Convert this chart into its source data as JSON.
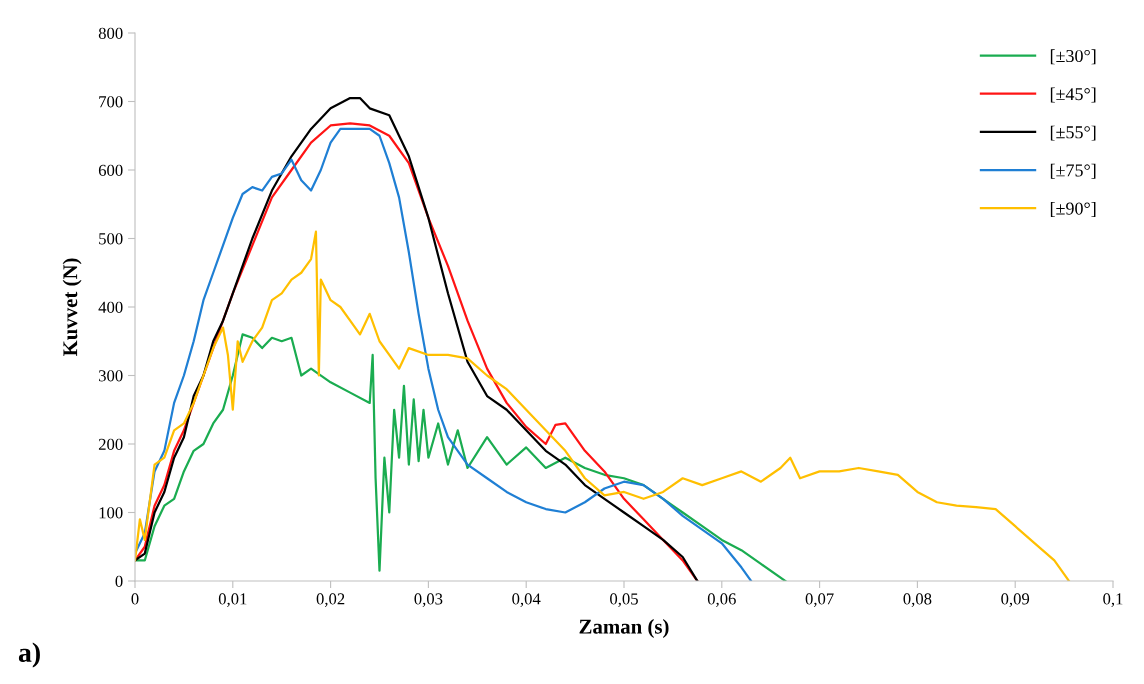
{
  "chart_data": {
    "type": "line",
    "xlabel": "Zaman (s)",
    "ylabel": "Kuvvet (N)",
    "annotations": [
      "a)"
    ],
    "xlim": [
      0,
      0.1
    ],
    "ylim": [
      0,
      800
    ],
    "xticks": [
      0,
      {
        "value": 0.01,
        "label": "0,01"
      },
      {
        "value": 0.02,
        "label": "0,02"
      },
      {
        "value": 0.03,
        "label": "0,03"
      },
      {
        "value": 0.04,
        "label": "0,04"
      },
      {
        "value": 0.05,
        "label": "0,05"
      },
      {
        "value": 0.06,
        "label": "0,06"
      },
      {
        "value": 0.07,
        "label": "0,07"
      },
      {
        "value": 0.08,
        "label": "0,08"
      },
      {
        "value": 0.09,
        "label": "0,09"
      },
      {
        "value": 0.1,
        "label": "0,1"
      }
    ],
    "yticks": [
      0,
      100,
      200,
      300,
      400,
      500,
      600,
      700,
      800
    ],
    "grid": false,
    "legend": "top right",
    "marker": "none",
    "line_style": "solid",
    "series": [
      {
        "name": "[±30°]",
        "color": "#1aac50",
        "x": [
          0,
          0.001,
          0.002,
          0.003,
          0.004,
          0.005,
          0.006,
          0.007,
          0.008,
          0.009,
          0.01,
          0.011,
          0.012,
          0.013,
          0.014,
          0.015,
          0.016,
          0.017,
          0.018,
          0.02,
          0.022,
          0.024,
          0.0243,
          0.0246,
          0.025,
          0.0255,
          0.026,
          0.0265,
          0.027,
          0.0275,
          0.028,
          0.0285,
          0.029,
          0.0295,
          0.03,
          0.031,
          0.032,
          0.033,
          0.034,
          0.036,
          0.038,
          0.04,
          0.042,
          0.044,
          0.046,
          0.048,
          0.05,
          0.052,
          0.054,
          0.056,
          0.058,
          0.06,
          0.062,
          0.064,
          0.0665
        ],
        "values": [
          30,
          30,
          80,
          110,
          120,
          160,
          190,
          200,
          230,
          250,
          300,
          360,
          355,
          340,
          355,
          350,
          355,
          300,
          310,
          290,
          275,
          260,
          330,
          150,
          15,
          180,
          100,
          250,
          180,
          285,
          170,
          265,
          175,
          250,
          180,
          230,
          170,
          220,
          165,
          210,
          170,
          195,
          165,
          180,
          165,
          155,
          150,
          140,
          120,
          100,
          80,
          60,
          45,
          25,
          0
        ]
      },
      {
        "name": "[±45°]",
        "color": "#ff1414",
        "x": [
          0,
          0.001,
          0.002,
          0.003,
          0.004,
          0.005,
          0.006,
          0.007,
          0.008,
          0.009,
          0.01,
          0.012,
          0.014,
          0.016,
          0.018,
          0.02,
          0.022,
          0.024,
          0.026,
          0.028,
          0.03,
          0.032,
          0.034,
          0.036,
          0.038,
          0.04,
          0.042,
          0.043,
          0.044,
          0.046,
          0.048,
          0.05,
          0.052,
          0.054,
          0.056,
          0.0575
        ],
        "values": [
          30,
          50,
          110,
          140,
          190,
          220,
          260,
          300,
          340,
          380,
          420,
          490,
          560,
          600,
          640,
          665,
          668,
          665,
          650,
          610,
          530,
          460,
          380,
          310,
          260,
          225,
          200,
          228,
          230,
          190,
          160,
          120,
          90,
          60,
          30,
          0
        ]
      },
      {
        "name": "[±55°]",
        "color": "#000000",
        "x": [
          0,
          0.001,
          0.002,
          0.003,
          0.004,
          0.005,
          0.006,
          0.007,
          0.008,
          0.009,
          0.01,
          0.012,
          0.014,
          0.016,
          0.018,
          0.02,
          0.022,
          0.023,
          0.024,
          0.026,
          0.028,
          0.03,
          0.032,
          0.034,
          0.036,
          0.038,
          0.04,
          0.042,
          0.044,
          0.046,
          0.048,
          0.05,
          0.052,
          0.054,
          0.056,
          0.0575
        ],
        "values": [
          30,
          40,
          100,
          130,
          180,
          210,
          270,
          300,
          350,
          380,
          420,
          500,
          570,
          620,
          660,
          690,
          705,
          705,
          690,
          680,
          620,
          530,
          420,
          320,
          270,
          250,
          220,
          190,
          170,
          140,
          120,
          100,
          80,
          60,
          35,
          0
        ]
      },
      {
        "name": "[±75°]",
        "color": "#1f7fd4",
        "x": [
          0,
          0.001,
          0.002,
          0.003,
          0.004,
          0.005,
          0.006,
          0.007,
          0.008,
          0.009,
          0.01,
          0.011,
          0.012,
          0.013,
          0.014,
          0.015,
          0.016,
          0.017,
          0.018,
          0.019,
          0.02,
          0.021,
          0.022,
          0.024,
          0.025,
          0.026,
          0.027,
          0.028,
          0.029,
          0.03,
          0.031,
          0.032,
          0.034,
          0.036,
          0.038,
          0.04,
          0.042,
          0.044,
          0.046,
          0.048,
          0.05,
          0.052,
          0.054,
          0.056,
          0.058,
          0.06,
          0.062,
          0.063
        ],
        "values": [
          40,
          70,
          160,
          190,
          260,
          300,
          350,
          410,
          450,
          490,
          530,
          565,
          575,
          570,
          590,
          595,
          615,
          585,
          570,
          600,
          640,
          660,
          660,
          660,
          650,
          610,
          560,
          480,
          390,
          310,
          250,
          210,
          170,
          150,
          130,
          115,
          105,
          100,
          115,
          135,
          145,
          140,
          120,
          95,
          75,
          55,
          20,
          0
        ]
      },
      {
        "name": "[±90°]",
        "color": "#ffbf00",
        "x": [
          0,
          0.0005,
          0.001,
          0.002,
          0.003,
          0.004,
          0.005,
          0.006,
          0.007,
          0.008,
          0.009,
          0.0095,
          0.01,
          0.0105,
          0.011,
          0.012,
          0.013,
          0.014,
          0.015,
          0.016,
          0.017,
          0.018,
          0.0185,
          0.0188,
          0.019,
          0.02,
          0.021,
          0.022,
          0.023,
          0.024,
          0.025,
          0.026,
          0.027,
          0.028,
          0.03,
          0.032,
          0.034,
          0.036,
          0.038,
          0.04,
          0.042,
          0.044,
          0.046,
          0.048,
          0.05,
          0.052,
          0.054,
          0.056,
          0.058,
          0.06,
          0.062,
          0.064,
          0.066,
          0.067,
          0.068,
          0.07,
          0.072,
          0.074,
          0.076,
          0.078,
          0.08,
          0.082,
          0.084,
          0.086,
          0.088,
          0.09,
          0.092,
          0.094,
          0.0955
        ],
        "values": [
          30,
          90,
          60,
          170,
          180,
          220,
          230,
          260,
          300,
          340,
          370,
          330,
          250,
          350,
          320,
          350,
          370,
          410,
          420,
          440,
          450,
          470,
          510,
          300,
          440,
          410,
          400,
          380,
          360,
          390,
          350,
          330,
          310,
          340,
          330,
          330,
          325,
          300,
          280,
          250,
          220,
          190,
          150,
          125,
          130,
          120,
          130,
          150,
          140,
          150,
          160,
          145,
          165,
          180,
          150,
          160,
          160,
          165,
          160,
          155,
          130,
          115,
          110,
          108,
          105,
          80,
          55,
          30,
          0
        ]
      }
    ]
  }
}
